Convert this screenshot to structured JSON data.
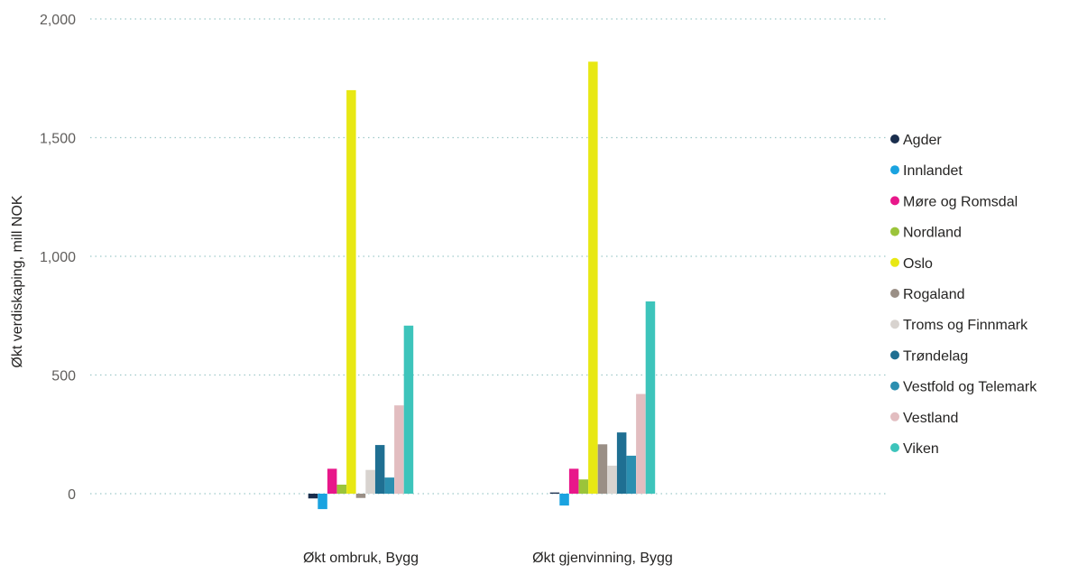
{
  "chart_data": {
    "type": "bar",
    "title": "",
    "xlabel": "",
    "ylabel": "Økt verdiskaping, mill NOK",
    "ylim": [
      -100,
      2000
    ],
    "yticks": [
      0,
      500,
      1000,
      1500,
      2000
    ],
    "ytick_labels": [
      "0",
      "500",
      "1,000",
      "1,500",
      "2,000"
    ],
    "grid": true,
    "legend_position": "right",
    "categories": [
      "Økt ombruk, Bygg",
      "Økt gjenvinning, Bygg"
    ],
    "series": [
      {
        "name": "Agder",
        "color": "#1a2e4d",
        "values": [
          -20,
          5
        ]
      },
      {
        "name": "Innlandet",
        "color": "#1aa3e0",
        "values": [
          -65,
          -50
        ]
      },
      {
        "name": "Møre og Romsdal",
        "color": "#e8178a",
        "values": [
          105,
          105
        ]
      },
      {
        "name": "Nordland",
        "color": "#9bc43a",
        "values": [
          38,
          60
        ]
      },
      {
        "name": "Oslo",
        "color": "#e8e813",
        "values": [
          1700,
          1820
        ]
      },
      {
        "name": "Rogaland",
        "color": "#9a8f86",
        "values": [
          -18,
          208
        ]
      },
      {
        "name": "Troms og Finnmark",
        "color": "#d8d3cf",
        "values": [
          100,
          118
        ]
      },
      {
        "name": "Trøndelag",
        "color": "#1f6f92",
        "values": [
          205,
          258
        ]
      },
      {
        "name": "Vestfold og Telemark",
        "color": "#2b8fb0",
        "values": [
          68,
          160
        ]
      },
      {
        "name": "Vestland",
        "color": "#e2bdc0",
        "values": [
          372,
          420
        ]
      },
      {
        "name": "Viken",
        "color": "#3dc4bb",
        "values": [
          708,
          810
        ]
      }
    ]
  }
}
